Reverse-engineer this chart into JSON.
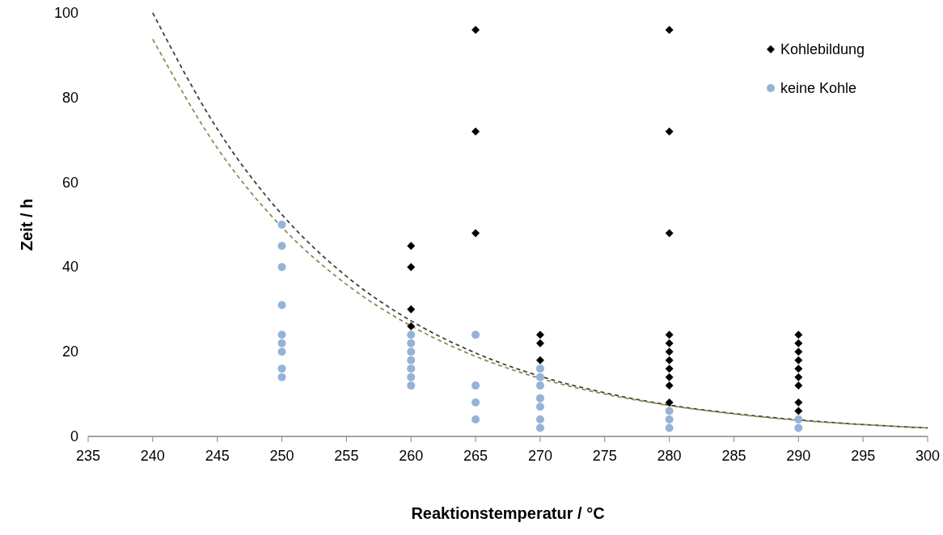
{
  "chart_data": {
    "type": "scatter",
    "xlabel": "Reaktionstemperatur  / °C",
    "ylabel": "Zeit / h",
    "xlim": [
      235,
      300
    ],
    "ylim": [
      0,
      100
    ],
    "xticks": [
      235,
      240,
      245,
      250,
      255,
      260,
      265,
      270,
      275,
      280,
      285,
      290,
      295,
      300
    ],
    "yticks": [
      0,
      20,
      40,
      60,
      80,
      100
    ],
    "grid": false,
    "legend": "top right",
    "series": [
      {
        "name": "Kohlebildung",
        "color": "#000000",
        "marker": "diamond",
        "x": [
          260,
          260,
          260,
          260,
          265,
          265,
          265,
          270,
          270,
          270,
          280,
          280,
          280,
          280,
          280,
          280,
          280,
          280,
          280,
          280,
          280,
          290,
          290,
          290,
          290,
          290,
          290,
          290,
          290,
          290
        ],
        "values": [
          45,
          40,
          30,
          26,
          96,
          72,
          48,
          24,
          22,
          18,
          96,
          72,
          48,
          24,
          22,
          20,
          18,
          16,
          14,
          12,
          8,
          24,
          22,
          20,
          18,
          16,
          14,
          12,
          8,
          6
        ]
      },
      {
        "name": "keine Kohle",
        "color": "#95b3d7",
        "marker": "circle",
        "x": [
          250,
          250,
          250,
          250,
          250,
          250,
          250,
          250,
          250,
          260,
          260,
          260,
          260,
          260,
          260,
          260,
          265,
          265,
          265,
          265,
          270,
          270,
          270,
          270,
          270,
          270,
          270,
          280,
          280,
          280,
          290,
          290
        ],
        "values": [
          50,
          45,
          40,
          31,
          24,
          22,
          20,
          16,
          14,
          24,
          22,
          20,
          18,
          16,
          14,
          12,
          24,
          12,
          8,
          4,
          16,
          14,
          12,
          9,
          7,
          4,
          2,
          6,
          4,
          2,
          4,
          2
        ]
      },
      {
        "type": "line",
        "color": "#404040",
        "line_style": "dashed",
        "marker": "none",
        "x": [
          240,
          245,
          250,
          255,
          260,
          265,
          270,
          275,
          280,
          285,
          290,
          295,
          300
        ],
        "values": [
          100,
          72.6,
          52.4,
          37.8,
          27.3,
          19.7,
          14.2,
          10.3,
          7.4,
          5.4,
          3.9,
          2.8,
          2.0
        ]
      },
      {
        "type": "line",
        "color": "#948a54",
        "line_style": "dashed",
        "marker": "none",
        "x": [
          240,
          245,
          250,
          255,
          260,
          265,
          270,
          275,
          280,
          285,
          290,
          295,
          300
        ],
        "values": [
          93.8,
          68.1,
          49.4,
          35.9,
          26.1,
          18.9,
          13.7,
          10.0,
          7.3,
          5.3,
          3.8,
          2.8,
          2.0
        ]
      }
    ]
  }
}
